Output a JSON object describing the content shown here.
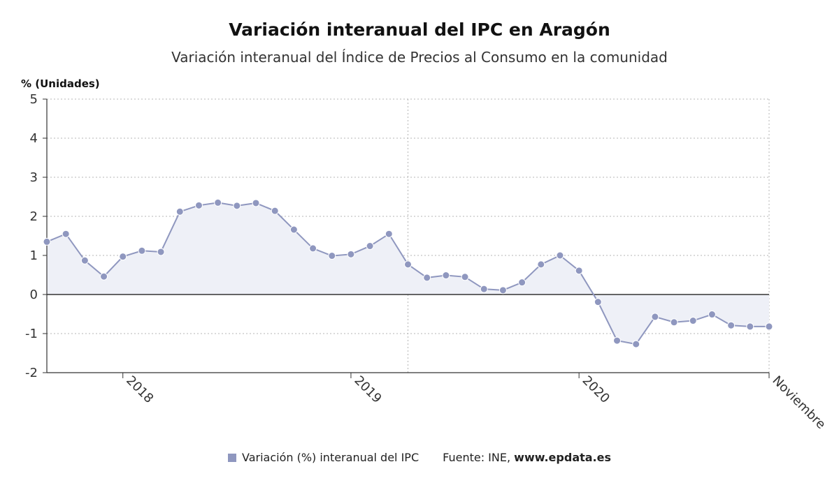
{
  "title": "Variación interanual del IPC en Aragón",
  "subtitle": "Variación interanual del Índice de Precios al Consumo en la comunidad",
  "legend": {
    "series_label": "Variación (%) interanual del IPC",
    "source_label": "Fuente: INE,",
    "source_site": "www.epdata.es"
  },
  "colors": {
    "line": "#8f97bf",
    "fill": "#eef0f7",
    "zero_line": "#333333",
    "grid": "#b5b5b5"
  },
  "chart_data": {
    "type": "line",
    "title": "Variación interanual del IPC en Aragón",
    "subtitle": "Variación interanual del Índice de Precios al Consumo en la comunidad",
    "ylabel": "% (Unidades)",
    "ylim": [
      -2,
      5
    ],
    "yticks": [
      -2,
      -1,
      0,
      1,
      2,
      3,
      4,
      5
    ],
    "xticks": [
      "2018",
      "2019",
      "2020",
      "Noviembre"
    ],
    "grid": true,
    "legend_position": "bottom",
    "series": [
      {
        "name": "Variación (%) interanual del IPC",
        "x": [
          "2017-09",
          "2017-10",
          "2017-11",
          "2017-12",
          "2018-01",
          "2018-02",
          "2018-03",
          "2018-04",
          "2018-05",
          "2018-06",
          "2018-07",
          "2018-08",
          "2018-09",
          "2018-10",
          "2018-11",
          "2018-12",
          "2019-01",
          "2019-02",
          "2019-03",
          "2019-04",
          "2019-05",
          "2019-06",
          "2019-07",
          "2019-08",
          "2019-09",
          "2019-10",
          "2019-11",
          "2019-12",
          "2020-01",
          "2020-02",
          "2020-03",
          "2020-04",
          "2020-05",
          "2020-06",
          "2020-07",
          "2020-08",
          "2020-09",
          "2020-10",
          "2020-11"
        ],
        "values": [
          1.35,
          1.55,
          0.87,
          0.46,
          0.97,
          1.12,
          1.09,
          2.12,
          2.28,
          2.35,
          2.27,
          2.34,
          2.14,
          1.66,
          1.18,
          0.99,
          1.03,
          1.24,
          1.55,
          0.77,
          0.43,
          0.49,
          0.45,
          0.14,
          0.11,
          0.31,
          0.77,
          1.0,
          0.61,
          -0.19,
          -1.18,
          -1.27,
          -0.57,
          -0.71,
          -0.67,
          -0.51,
          -0.79,
          -0.82,
          -0.82
        ]
      }
    ]
  }
}
